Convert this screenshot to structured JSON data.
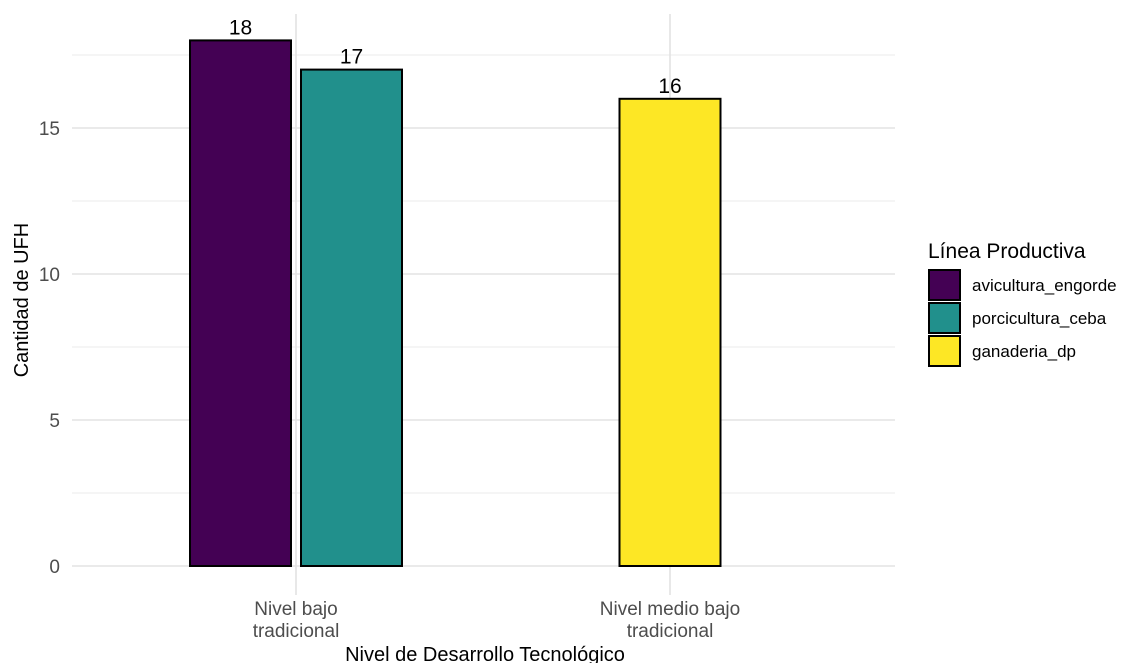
{
  "chart_data": {
    "type": "bar",
    "xlabel": "Nivel de Desarrollo Tecnológico",
    "ylabel": "Cantidad de UFH",
    "ylim": [
      0,
      18.5
    ],
    "yticks": [
      "0",
      "5",
      "10",
      "15"
    ],
    "grid": true,
    "categories": [
      [
        "Nivel bajo",
        "tradicional"
      ],
      [
        "Nivel medio bajo",
        "tradicional"
      ]
    ],
    "series": [
      {
        "name": "avicultura_engorde",
        "color": "#440154",
        "values": [
          18,
          null
        ]
      },
      {
        "name": "porcicultura_ceba",
        "color": "#21908C",
        "values": [
          17,
          null
        ]
      },
      {
        "name": "ganaderia_dp",
        "color": "#FDE725",
        "values": [
          null,
          16
        ]
      }
    ],
    "legend": {
      "title": "Línea Productiva",
      "position": "right"
    }
  }
}
